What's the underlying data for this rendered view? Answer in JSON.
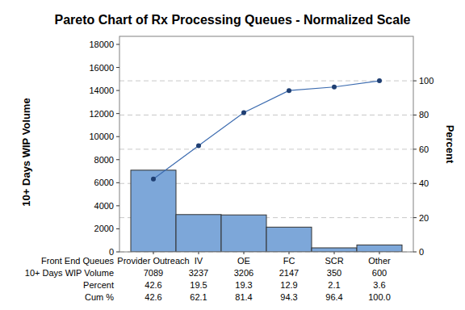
{
  "chart_data": {
    "type": "bar",
    "title": "Pareto Chart of Rx Processing Queues - Normalized Scale",
    "x_label": "Front End Queues",
    "y_label": "10+ Days WIP Volume",
    "y2_label": "Percent",
    "categories": [
      "Provider Outreach",
      "IV",
      "OE",
      "FC",
      "SCR",
      "Other"
    ],
    "series": [
      {
        "name": "10+ Days WIP Volume",
        "type": "bar",
        "color": "#7da7d9",
        "values": [
          7089,
          3237,
          3206,
          2147,
          350,
          600
        ]
      },
      {
        "name": "Cum %",
        "type": "line",
        "axis": "y2",
        "color": "#3d6cb0",
        "marker": "circle",
        "line_style": "solid",
        "values": [
          42.6,
          62.1,
          81.4,
          94.3,
          96.4,
          100.0
        ],
        "value_labels": [
          "42.6",
          "62.1",
          "81.4",
          "94.3",
          "96.4",
          "100.0"
        ]
      }
    ],
    "percent": {
      "name": "Percent",
      "values": [
        42.6,
        19.5,
        19.3,
        12.9,
        2.1,
        3.6
      ]
    },
    "ylim": [
      0,
      18700
    ],
    "yticks": [
      0,
      2000,
      4000,
      6000,
      8000,
      10000,
      12000,
      14000,
      16000,
      18000
    ],
    "y2lim": [
      0,
      126
    ],
    "y2ticks": [
      0,
      20,
      40,
      60,
      80,
      100
    ],
    "grid": true
  }
}
